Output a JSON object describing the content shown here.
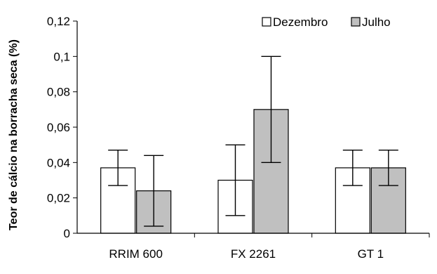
{
  "chart_data": {
    "type": "bar",
    "ylabel": "Teor de cálcio na borracha seca (%)",
    "xlabel": "",
    "categories": [
      "RRIM 600",
      "FX 2261",
      "GT 1"
    ],
    "ylim": [
      0,
      0.12
    ],
    "yticks": [
      {
        "value": 0,
        "label": "0"
      },
      {
        "value": 0.02,
        "label": "0,02"
      },
      {
        "value": 0.04,
        "label": "0,04"
      },
      {
        "value": 0.06,
        "label": "0,06"
      },
      {
        "value": 0.08,
        "label": "0,08"
      },
      {
        "value": 0.1,
        "label": "0,1"
      },
      {
        "value": 0.12,
        "label": "0,12"
      }
    ],
    "series": [
      {
        "name": "Dezembro",
        "color": "#ffffff",
        "values": [
          0.037,
          0.03,
          0.037
        ],
        "error": [
          0.01,
          0.02,
          0.01
        ]
      },
      {
        "name": "Julho",
        "color": "#c0c0c0",
        "values": [
          0.024,
          0.07,
          0.037
        ],
        "error": [
          0.02,
          0.03,
          0.01
        ]
      }
    ],
    "grid": false,
    "legend_position": "top-right"
  }
}
